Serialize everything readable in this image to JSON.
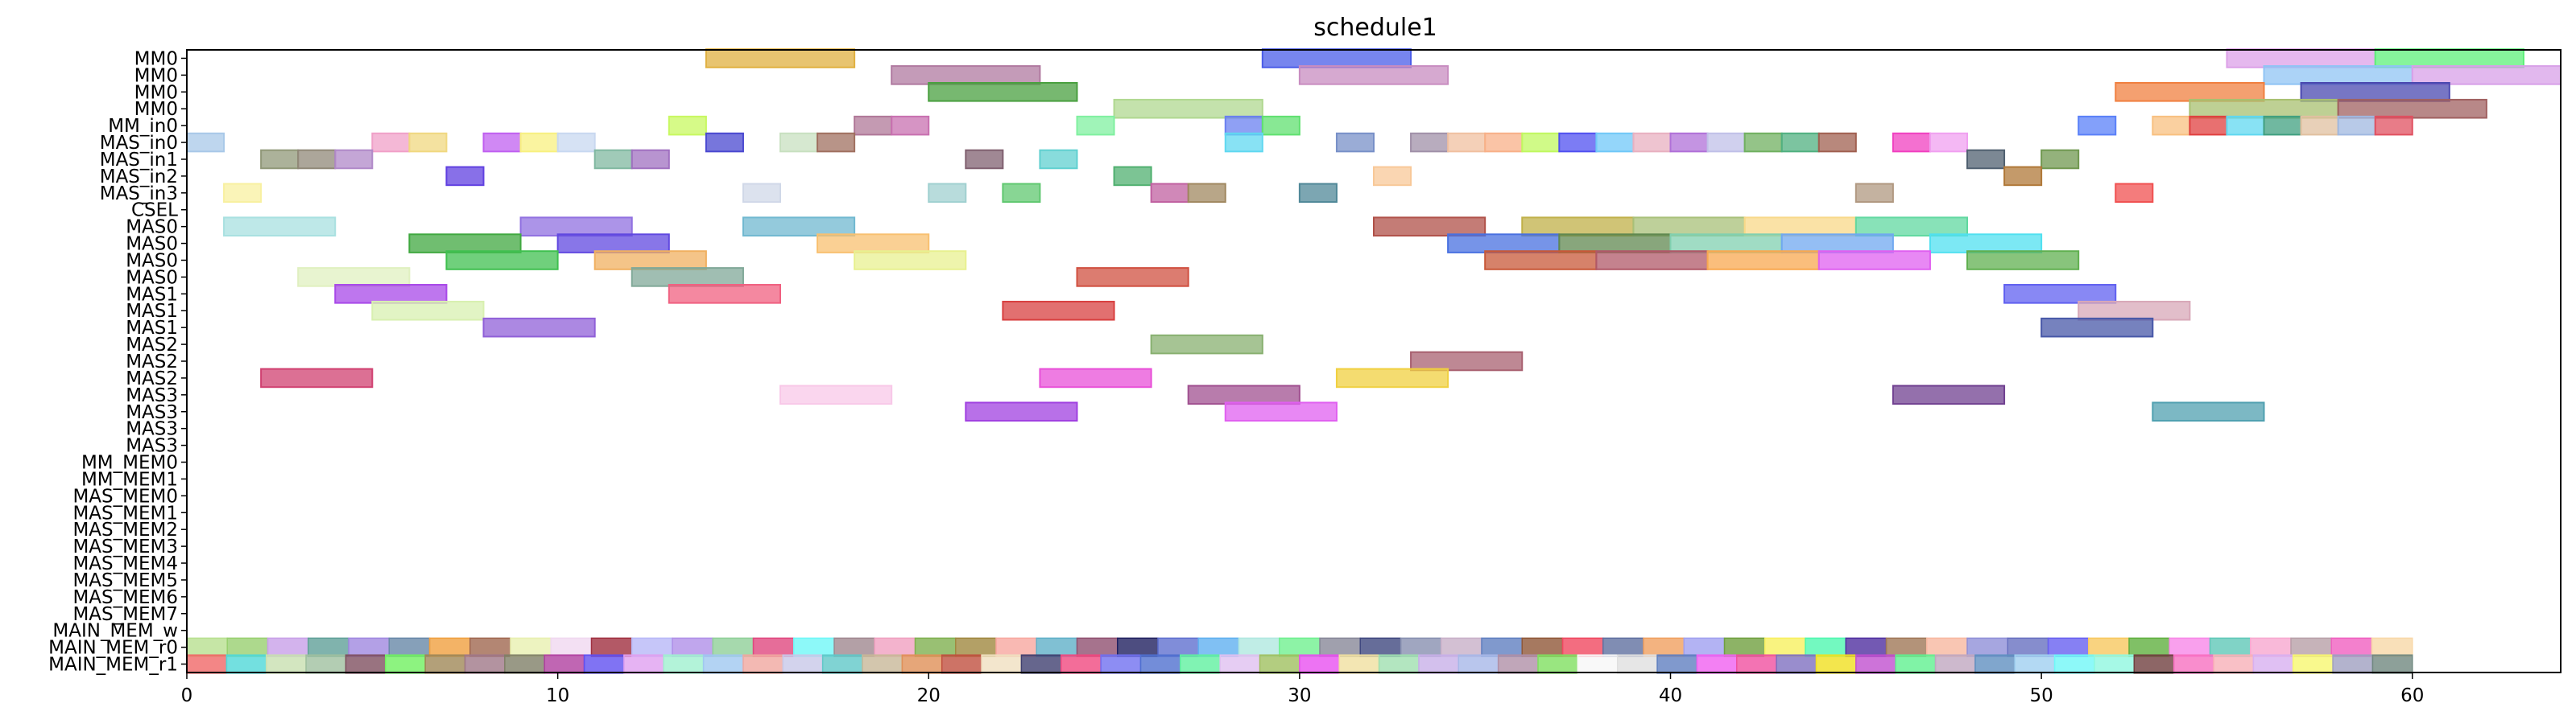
{
  "chart_data": {
    "type": "gantt",
    "title": "schedule1",
    "xlim": [
      0,
      64
    ],
    "x_ticks": [
      0,
      10,
      20,
      30,
      40,
      50,
      60
    ],
    "x_tick_labels": [
      "0",
      "10",
      "20",
      "30",
      "40",
      "50",
      "60"
    ],
    "rows": [
      "MM0",
      "MM0",
      "MM0",
      "MM0",
      "MM_in0",
      "MAS_in0",
      "MAS_in1",
      "MAS_in2",
      "MAS_in3",
      "CSEL",
      "MAS0",
      "MAS0",
      "MAS0",
      "MAS0",
      "MAS1",
      "MAS1",
      "MAS1",
      "MAS2",
      "MAS2",
      "MAS2",
      "MAS3",
      "MAS3",
      "MAS3",
      "MAS3",
      "MM_MEM0",
      "MM_MEM1",
      "MAS_MEM0",
      "MAS_MEM1",
      "MAS_MEM2",
      "MAS_MEM3",
      "MAS_MEM4",
      "MAS_MEM5",
      "MAS_MEM6",
      "MAS_MEM7",
      "MAIN_MEM_w",
      "MAIN_MEM_r0",
      "MAIN_MEM_r1"
    ],
    "bars": [
      {
        "row": 0,
        "start": 14,
        "end": 18,
        "color": "#e0b040"
      },
      {
        "row": 0,
        "start": 29,
        "end": 33,
        "color": "#4a5ce8"
      },
      {
        "row": 0,
        "start": 55,
        "end": 59,
        "color": "#dca0e8"
      },
      {
        "row": 0,
        "start": 59,
        "end": 63,
        "color": "#5ef07a"
      },
      {
        "row": 1,
        "start": 19,
        "end": 23,
        "color": "#b07aa0"
      },
      {
        "row": 1,
        "start": 30,
        "end": 34,
        "color": "#c88cc0"
      },
      {
        "row": 1,
        "start": 56,
        "end": 60,
        "color": "#90c4f4"
      },
      {
        "row": 1,
        "start": 60,
        "end": 64,
        "color": "#d8a0e8"
      },
      {
        "row": 2,
        "start": 20,
        "end": 24,
        "color": "#4aa040"
      },
      {
        "row": 2,
        "start": 52,
        "end": 56,
        "color": "#f08040"
      },
      {
        "row": 2,
        "start": 57,
        "end": 61,
        "color": "#4a48b0"
      },
      {
        "row": 3,
        "start": 25,
        "end": 29,
        "color": "#b0d890"
      },
      {
        "row": 3,
        "start": 54,
        "end": 58,
        "color": "#a8c070"
      },
      {
        "row": 3,
        "start": 58,
        "end": 62,
        "color": "#a06060"
      },
      {
        "row": 4,
        "start": 13,
        "end": 14,
        "color": "#c8f860"
      },
      {
        "row": 4,
        "start": 18,
        "end": 19,
        "color": "#b07898"
      },
      {
        "row": 4,
        "start": 19,
        "end": 20,
        "color": "#c870b0"
      },
      {
        "row": 4,
        "start": 24,
        "end": 25,
        "color": "#80f0a0"
      },
      {
        "row": 4,
        "start": 28,
        "end": 29,
        "color": "#6a80f0"
      },
      {
        "row": 4,
        "start": 29,
        "end": 30,
        "color": "#60e070"
      },
      {
        "row": 4,
        "start": 51,
        "end": 52,
        "color": "#5a80f8"
      },
      {
        "row": 4,
        "start": 53,
        "end": 54,
        "color": "#f8c080"
      },
      {
        "row": 4,
        "start": 54,
        "end": 55,
        "color": "#e04040"
      },
      {
        "row": 4,
        "start": 55,
        "end": 56,
        "color": "#60d8f0"
      },
      {
        "row": 4,
        "start": 56,
        "end": 57,
        "color": "#40a080"
      },
      {
        "row": 4,
        "start": 57,
        "end": 58,
        "color": "#e0c0a0"
      },
      {
        "row": 4,
        "start": 58,
        "end": 59,
        "color": "#a0b8e0"
      },
      {
        "row": 4,
        "start": 59,
        "end": 60,
        "color": "#e05060"
      },
      {
        "row": 5,
        "start": 0,
        "end": 1,
        "color": "#a8c8e8"
      },
      {
        "row": 5,
        "start": 5,
        "end": 6,
        "color": "#f0a0c8"
      },
      {
        "row": 5,
        "start": 6,
        "end": 7,
        "color": "#f0d880"
      },
      {
        "row": 5,
        "start": 8,
        "end": 9,
        "color": "#c060f0"
      },
      {
        "row": 5,
        "start": 9,
        "end": 10,
        "color": "#f8f080"
      },
      {
        "row": 5,
        "start": 10,
        "end": 11,
        "color": "#c8d8f0"
      },
      {
        "row": 5,
        "start": 14,
        "end": 15,
        "color": "#4a48d0"
      },
      {
        "row": 5,
        "start": 16,
        "end": 17,
        "color": "#c8e0c0"
      },
      {
        "row": 5,
        "start": 17,
        "end": 18,
        "color": "#a07060"
      },
      {
        "row": 5,
        "start": 28,
        "end": 29,
        "color": "#60d8f0"
      },
      {
        "row": 5,
        "start": 31,
        "end": 32,
        "color": "#7890c8"
      },
      {
        "row": 5,
        "start": 33,
        "end": 34,
        "color": "#a090a8"
      },
      {
        "row": 5,
        "start": 34,
        "end": 35,
        "color": "#f0c0a0"
      },
      {
        "row": 5,
        "start": 35,
        "end": 36,
        "color": "#f8b088"
      },
      {
        "row": 5,
        "start": 36,
        "end": 37,
        "color": "#c0f860"
      },
      {
        "row": 5,
        "start": 37,
        "end": 38,
        "color": "#5050f0"
      },
      {
        "row": 5,
        "start": 38,
        "end": 39,
        "color": "#70c8f8"
      },
      {
        "row": 5,
        "start": 39,
        "end": 40,
        "color": "#e8b0c0"
      },
      {
        "row": 5,
        "start": 40,
        "end": 41,
        "color": "#b070d8"
      },
      {
        "row": 5,
        "start": 41,
        "end": 42,
        "color": "#c0c0e8"
      },
      {
        "row": 5,
        "start": 42,
        "end": 43,
        "color": "#70b060"
      },
      {
        "row": 5,
        "start": 43,
        "end": 44,
        "color": "#50b080"
      },
      {
        "row": 5,
        "start": 44,
        "end": 45,
        "color": "#a06050"
      },
      {
        "row": 5,
        "start": 46,
        "end": 47,
        "color": "#f040c0"
      },
      {
        "row": 5,
        "start": 47,
        "end": 48,
        "color": "#f0a0f0"
      },
      {
        "row": 6,
        "start": 2,
        "end": 3,
        "color": "#909878"
      },
      {
        "row": 6,
        "start": 3,
        "end": 4,
        "color": "#908878"
      },
      {
        "row": 6,
        "start": 4,
        "end": 5,
        "color": "#b088c8"
      },
      {
        "row": 6,
        "start": 11,
        "end": 12,
        "color": "#80b8a0"
      },
      {
        "row": 6,
        "start": 12,
        "end": 13,
        "color": "#a070c0"
      },
      {
        "row": 6,
        "start": 21,
        "end": 22,
        "color": "#806070"
      },
      {
        "row": 6,
        "start": 23,
        "end": 24,
        "color": "#60d0d0"
      },
      {
        "row": 6,
        "start": 48,
        "end": 49,
        "color": "#506070"
      },
      {
        "row": 6,
        "start": 50,
        "end": 51,
        "color": "#709850"
      },
      {
        "row": 7,
        "start": 7,
        "end": 8,
        "color": "#6040e0"
      },
      {
        "row": 7,
        "start": 25,
        "end": 26,
        "color": "#50b070"
      },
      {
        "row": 7,
        "start": 32,
        "end": 33,
        "color": "#f8c898"
      },
      {
        "row": 7,
        "start": 49,
        "end": 50,
        "color": "#b07838"
      },
      {
        "row": 8,
        "start": 1,
        "end": 2,
        "color": "#f8f0a0"
      },
      {
        "row": 8,
        "start": 15,
        "end": 16,
        "color": "#d0d8e8"
      },
      {
        "row": 8,
        "start": 20,
        "end": 21,
        "color": "#a0d0d0"
      },
      {
        "row": 8,
        "start": 22,
        "end": 23,
        "color": "#60c870"
      },
      {
        "row": 8,
        "start": 26,
        "end": 27,
        "color": "#c060a0"
      },
      {
        "row": 8,
        "start": 27,
        "end": 28,
        "color": "#a08860"
      },
      {
        "row": 8,
        "start": 30,
        "end": 31,
        "color": "#508898"
      },
      {
        "row": 8,
        "start": 45,
        "end": 46,
        "color": "#b09880"
      },
      {
        "row": 8,
        "start": 52,
        "end": 53,
        "color": "#f05050"
      },
      {
        "row": 10,
        "start": 1,
        "end": 4,
        "color": "#a8e0e0"
      },
      {
        "row": 10,
        "start": 9,
        "end": 12,
        "color": "#9070e0"
      },
      {
        "row": 10,
        "start": 15,
        "end": 18,
        "color": "#70b8d0"
      },
      {
        "row": 10,
        "start": 32,
        "end": 35,
        "color": "#b05048"
      },
      {
        "row": 10,
        "start": 36,
        "end": 39,
        "color": "#c0b048"
      },
      {
        "row": 10,
        "start": 39,
        "end": 42,
        "color": "#a8c078"
      },
      {
        "row": 10,
        "start": 42,
        "end": 45,
        "color": "#f8d888"
      },
      {
        "row": 10,
        "start": 45,
        "end": 48,
        "color": "#60d8a0"
      },
      {
        "row": 11,
        "start": 6,
        "end": 9,
        "color": "#40a840"
      },
      {
        "row": 11,
        "start": 10,
        "end": 13,
        "color": "#6048e0"
      },
      {
        "row": 11,
        "start": 17,
        "end": 20,
        "color": "#f8c070"
      },
      {
        "row": 11,
        "start": 34,
        "end": 37,
        "color": "#4870e0"
      },
      {
        "row": 11,
        "start": 37,
        "end": 40,
        "color": "#608850"
      },
      {
        "row": 11,
        "start": 40,
        "end": 43,
        "color": "#80d0b0"
      },
      {
        "row": 11,
        "start": 43,
        "end": 46,
        "color": "#70a8f0"
      },
      {
        "row": 11,
        "start": 47,
        "end": 50,
        "color": "#50e0f0"
      },
      {
        "row": 12,
        "start": 7,
        "end": 10,
        "color": "#40c050"
      },
      {
        "row": 12,
        "start": 11,
        "end": 14,
        "color": "#f0b060"
      },
      {
        "row": 12,
        "start": 18,
        "end": 21,
        "color": "#e8f090"
      },
      {
        "row": 12,
        "start": 35,
        "end": 38,
        "color": "#c85838"
      },
      {
        "row": 12,
        "start": 38,
        "end": 41,
        "color": "#b05868"
      },
      {
        "row": 12,
        "start": 41,
        "end": 44,
        "color": "#f8a850"
      },
      {
        "row": 12,
        "start": 44,
        "end": 47,
        "color": "#e060f0"
      },
      {
        "row": 12,
        "start": 48,
        "end": 51,
        "color": "#60b050"
      },
      {
        "row": 13,
        "start": 3,
        "end": 6,
        "color": "#e0f0c0"
      },
      {
        "row": 13,
        "start": 12,
        "end": 15,
        "color": "#80a898"
      },
      {
        "row": 13,
        "start": 24,
        "end": 27,
        "color": "#d05040"
      },
      {
        "row": 14,
        "start": 4,
        "end": 7,
        "color": "#a848e8"
      },
      {
        "row": 14,
        "start": 13,
        "end": 16,
        "color": "#f06080"
      },
      {
        "row": 14,
        "start": 49,
        "end": 52,
        "color": "#6060f0"
      },
      {
        "row": 15,
        "start": 5,
        "end": 8,
        "color": "#d8f0b0"
      },
      {
        "row": 15,
        "start": 22,
        "end": 25,
        "color": "#d84040"
      },
      {
        "row": 15,
        "start": 51,
        "end": 54,
        "color": "#d8a8b8"
      },
      {
        "row": 16,
        "start": 8,
        "end": 11,
        "color": "#9060d8"
      },
      {
        "row": 16,
        "start": 50,
        "end": 53,
        "color": "#4858a8"
      },
      {
        "row": 17,
        "start": 26,
        "end": 29,
        "color": "#88b070"
      },
      {
        "row": 18,
        "start": 33,
        "end": 36,
        "color": "#a86070"
      },
      {
        "row": 19,
        "start": 2,
        "end": 5,
        "color": "#d04070"
      },
      {
        "row": 19,
        "start": 23,
        "end": 26,
        "color": "#e850d8"
      },
      {
        "row": 19,
        "start": 31,
        "end": 34,
        "color": "#f0d040"
      },
      {
        "row": 20,
        "start": 16,
        "end": 19,
        "color": "#f8c8e8"
      },
      {
        "row": 20,
        "start": 27,
        "end": 30,
        "color": "#a05090"
      },
      {
        "row": 20,
        "start": 46,
        "end": 49,
        "color": "#704090"
      },
      {
        "row": 21,
        "start": 21,
        "end": 24,
        "color": "#a040e0"
      },
      {
        "row": 21,
        "start": 28,
        "end": 31,
        "color": "#e060f0"
      },
      {
        "row": 21,
        "start": 53,
        "end": 56,
        "color": "#50a0b0"
      }
    ],
    "strip_r0_colors": [
      "#b8e090",
      "#98d070",
      "#c8a0e8",
      "#60a098",
      "#a088e0",
      "#6888a8",
      "#f0a040",
      "#a06850",
      "#e8f0b0",
      "#f0d8f0",
      "#a03040",
      "#b8b8f8",
      "#b090e8",
      "#90d098",
      "#e04880",
      "#70f8f8",
      "#a08890",
      "#f0a0c0",
      "#80b050",
      "#a08840",
      "#f8a8a0",
      "#60b0c8",
      "#905070",
      "#202060",
      "#6070d0",
      "#60b0f0",
      "#b0e8e0",
      "#70f090",
      "#888898",
      "#404880",
      "#8890b0",
      "#c8b0c8",
      "#6080c0",
      "#905838",
      "#f04860",
      "#6070a0",
      "#f0a060",
      "#a0a0f0",
      "#70a040",
      "#f8f060",
      "#50f8b0",
      "#5030a0",
      "#a07858",
      "#f8b8a0",
      "#9090d8",
      "#6870c0",
      "#6860f0",
      "#f8c860",
      "#60b040",
      "#f888e8",
      "#60c8b8",
      "#f8a8d0",
      "#b8a0a8",
      "#f060c0",
      "#f8d8a8"
    ],
    "strip_r1_colors": [
      "#f06868",
      "#50d8d8",
      "#c8e0b0",
      "#a0c0a0",
      "#805060",
      "#70f060",
      "#a08858",
      "#a07888",
      "#808068",
      "#b040a0",
      "#6050f0",
      "#e0a0f0",
      "#a0f0d0",
      "#a0c8f0",
      "#f0a8a0",
      "#c8c8e8",
      "#60c8c8",
      "#c8b898",
      "#e09058",
      "#c05040",
      "#f0e0c0",
      "#404070",
      "#f04880",
      "#7070f0",
      "#5070d0",
      "#60f0a0",
      "#e0c0f0",
      "#a0c060",
      "#e850f0",
      "#f0e0a0",
      "#a0e0b0",
      "#c8b0e8",
      "#a8b8e8",
      "#b090a8",
      "#80e060",
      "#f8f8f8",
      "#e0e0e0",
      "#6080c0",
      "#f060f0",
      "#f050a0",
      "#8070c0",
      "#f0e020",
      "#c050d0",
      "#60f090",
      "#c0a8c0",
      "#6090c0",
      "#a0d0f0",
      "#70f8f8",
      "#90f8e0",
      "#704040",
      "#f870c0",
      "#f8b0b8",
      "#d8b0f0",
      "#f8f870",
      "#a0a0c0",
      "#708880"
    ]
  }
}
